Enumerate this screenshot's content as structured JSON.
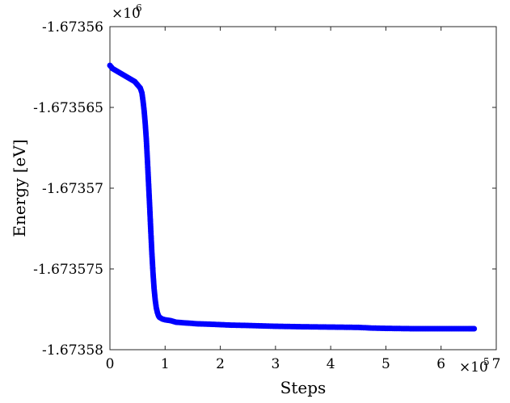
{
  "chart_data": {
    "type": "scatter",
    "xlabel": "Steps",
    "ylabel": "Energy [eV]",
    "x_multiplier_label": {
      "base": "×10",
      "exp": "5"
    },
    "y_multiplier_label": {
      "base": "×10",
      "exp": "6"
    },
    "xlim": [
      0,
      7
    ],
    "ylim": [
      -1.67358,
      -1.67356
    ],
    "x_ticks": [
      0,
      1,
      2,
      3,
      4,
      5,
      6,
      7
    ],
    "x_tick_labels": [
      "0",
      "1",
      "2",
      "3",
      "4",
      "5",
      "6",
      "7"
    ],
    "y_ticks": [
      -1.67356,
      -1.673565,
      -1.67357,
      -1.673575,
      -1.67358
    ],
    "y_tick_labels": [
      "-1.67356",
      "-1.673565",
      "-1.67357",
      "-1.673575",
      "-1.67358"
    ],
    "grid": false,
    "marker_color": "#0000ff",
    "series": [
      {
        "x": [
          0.0,
          0.05,
          0.1,
          0.15,
          0.2,
          0.25,
          0.3,
          0.35,
          0.4,
          0.45,
          0.5,
          0.55,
          0.58,
          0.6,
          0.62,
          0.64,
          0.66,
          0.68,
          0.7,
          0.72,
          0.74,
          0.76,
          0.78,
          0.8,
          0.82,
          0.84,
          0.86,
          0.88,
          0.9,
          0.95,
          1.0,
          1.1,
          1.2,
          1.4,
          1.6,
          1.8,
          2.0,
          2.2,
          2.5,
          3.0,
          3.5,
          4.0,
          4.5,
          4.75,
          5.0,
          5.5,
          6.0,
          6.5,
          6.6
        ],
        "y": [
          -1.6735624,
          -1.6735626,
          -1.6735627,
          -1.6735628,
          -1.6735629,
          -1.673563,
          -1.6735631,
          -1.6735632,
          -1.6735633,
          -1.6735634,
          -1.6735636,
          -1.6735638,
          -1.6735641,
          -1.6735646,
          -1.6735652,
          -1.673566,
          -1.673567,
          -1.6735683,
          -1.6735697,
          -1.6735711,
          -1.6735726,
          -1.673574,
          -1.6735752,
          -1.6735762,
          -1.6735769,
          -1.6735774,
          -1.6735777,
          -1.6735779,
          -1.673578,
          -1.6735781,
          -1.67357815,
          -1.6735782,
          -1.6735783,
          -1.67357835,
          -1.6735784,
          -1.67357842,
          -1.67357845,
          -1.67357848,
          -1.6735785,
          -1.67357855,
          -1.67357858,
          -1.6735786,
          -1.67357862,
          -1.67357866,
          -1.67357868,
          -1.6735787,
          -1.6735787,
          -1.6735787,
          -1.6735787
        ]
      }
    ]
  }
}
